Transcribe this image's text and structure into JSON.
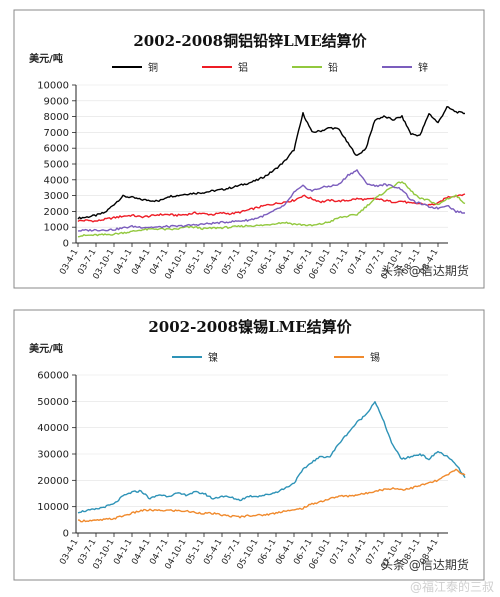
{
  "charts": {
    "chart_data": [
      {
        "type": "line",
        "title": "2002-2008铜铝铅锌LME结算价",
        "ylabel": "美元/吨",
        "xlabel": "",
        "ylim": [
          0,
          10000
        ],
        "yticks": [
          0,
          1000,
          2000,
          3000,
          4000,
          5000,
          6000,
          7000,
          8000,
          9000,
          10000
        ],
        "x_labels": [
          "03-4-1",
          "03-7-1",
          "03-10-1",
          "04-1-1",
          "04-4-1",
          "04-7-1",
          "04-10-1",
          "05-1-1",
          "05-4-1",
          "05-7-1",
          "05-10-1",
          "06-1-1",
          "06-4-1",
          "06-7-1",
          "06-10-1",
          "07-1-1",
          "07-4-1",
          "07-7-1",
          "07-10-1",
          "08-1-1",
          "08-4-1"
        ],
        "legend_position": "top",
        "grid": true,
        "series": [
          {
            "name": "铜",
            "color": "#000000",
            "values": [
              1570,
              1640,
              1750,
              1930,
              2450,
              2960,
              2880,
              2750,
              2700,
              2650,
              2950,
              3000,
              3100,
              3150,
              3200,
              3300,
              3380,
              3500,
              3650,
              3800,
              4000,
              4300,
              4700,
              5200,
              5900,
              8200,
              7000,
              7100,
              7300,
              7200,
              6300,
              5500,
              6000,
              7800,
              8000,
              7800,
              8000,
              6900,
              6800,
              8200,
              7600,
              8600,
              8300,
              8200
            ],
            "x0": 0,
            "xstep": 0.5
          },
          {
            "name": "铝",
            "color": "#ee1c25",
            "values": [
              1400,
              1430,
              1380,
              1500,
              1600,
              1700,
              1750,
              1650,
              1700,
              1800,
              1800,
              1750,
              1800,
              1900,
              1850,
              1800,
              1900,
              1850,
              1950,
              2100,
              2250,
              2400,
              2500,
              2600,
              2700,
              3000,
              2800,
              2600,
              2700,
              2650,
              2700,
              2800,
              2750,
              2800,
              2700,
              2600,
              2650,
              2500,
              2500,
              2400,
              2500,
              2900,
              3000,
              3100
            ],
            "x0": 0,
            "xstep": 0.5
          },
          {
            "name": "铅",
            "color": "#92c83e",
            "values": [
              450,
              480,
              500,
              520,
              560,
              650,
              720,
              830,
              870,
              900,
              850,
              880,
              1000,
              1000,
              900,
              950,
              970,
              1000,
              1050,
              1100,
              1100,
              1150,
              1250,
              1300,
              1200,
              1150,
              1100,
              1200,
              1350,
              1600,
              1700,
              1800,
              2300,
              2800,
              3200,
              3600,
              3900,
              3300,
              2800,
              2700,
              2400,
              2800,
              3000,
              2500
            ],
            "x0": 0,
            "xstep": 0.5
          },
          {
            "name": "锌",
            "color": "#7b5dbd",
            "values": [
              780,
              800,
              820,
              830,
              850,
              950,
              1050,
              1000,
              1000,
              1000,
              1050,
              1050,
              1100,
              1150,
              1200,
              1250,
              1300,
              1350,
              1400,
              1450,
              1600,
              1800,
              2100,
              2400,
              3200,
              3600,
              3300,
              3500,
              3600,
              3700,
              4300,
              4600,
              3800,
              3600,
              3700,
              3600,
              3400,
              2700,
              2500,
              2300,
              2200,
              2400,
              2000,
              1900
            ],
            "x0": 0,
            "xstep": 0.5
          }
        ]
      },
      {
        "type": "line",
        "title": "2002-2008镍锡LME结算价",
        "ylabel": "美元/吨",
        "xlabel": "",
        "ylim": [
          0,
          60000
        ],
        "yticks": [
          0,
          10000,
          20000,
          30000,
          40000,
          50000,
          60000
        ],
        "x_labels": [
          "03-4-1",
          "03-7-1",
          "03-10-1",
          "04-1-1",
          "04-4-1",
          "04-7-1",
          "04-10-1",
          "05-1-1",
          "05-4-1",
          "05-7-1",
          "05-10-1",
          "06-1-1",
          "06-4-1",
          "06-7-1",
          "06-10-1",
          "07-1-1",
          "07-4-1",
          "07-7-1",
          "07-10-1",
          "08-1-1",
          "08-4-1"
        ],
        "legend_position": "top",
        "grid": true,
        "series": [
          {
            "name": "镍",
            "color": "#2e93b7",
            "values": [
              8000,
              8500,
              9000,
              10000,
              11000,
              14000,
              15500,
              16000,
              13000,
              14500,
              14000,
              15000,
              14500,
              15500,
              15000,
              13000,
              14000,
              13500,
              12500,
              14000,
              14000,
              14500,
              15500,
              17000,
              19000,
              24000,
              27000,
              29000,
              29000,
              34000,
              38000,
              42000,
              45000,
              50000,
              42000,
              33000,
              28000,
              29000,
              30000,
              28000,
              31000,
              29000,
              26000,
              21000
            ],
            "x0": 0,
            "xstep": 0.5
          },
          {
            "name": "锡",
            "color": "#f08a2d",
            "values": [
              4600,
              4700,
              4700,
              5100,
              5500,
              6500,
              7500,
              8500,
              8700,
              8500,
              8600,
              8500,
              8300,
              7800,
              7500,
              7400,
              6800,
              6400,
              6100,
              6700,
              6700,
              7000,
              7600,
              8500,
              8600,
              9500,
              11000,
              12000,
              13000,
              14000,
              14000,
              14500,
              15000,
              16000,
              16500,
              17000,
              16500,
              17000,
              18000,
              19000,
              20000,
              22000,
              24000,
              22000
            ],
            "x0": 0,
            "xstep": 0.5
          }
        ]
      }
    ]
  },
  "watermarks": {
    "top": "头条 @信达期货",
    "bottom": "头条 @信达期货",
    "weibo": "@福江泰的三叔"
  }
}
